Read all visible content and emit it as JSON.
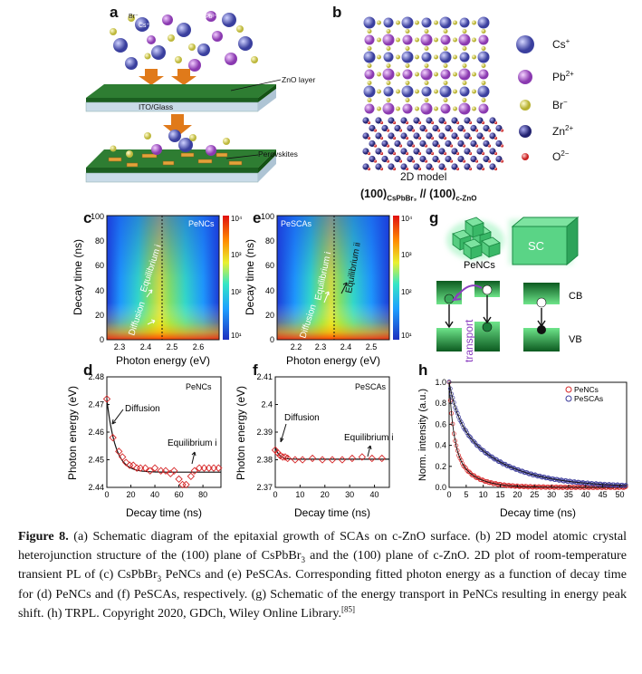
{
  "panels": {
    "a": {
      "label": "a",
      "ions": [
        "Br⁻",
        "Cs⁺",
        "Pb²⁺"
      ],
      "zno_layer": "ZnO layer",
      "substrate": "ITO/Glass",
      "perovskites": "Perovskites",
      "colors": {
        "zno": "#2e7d32",
        "substrate": "#c9dbe8",
        "arrow": "#e07a1a",
        "cs": "#4a4fb0",
        "pb": "#a44fc4",
        "br": "#e4e06a"
      }
    },
    "b": {
      "label": "b",
      "legend": [
        {
          "sym": "Cs",
          "sup": "+",
          "color": "#4f55c8"
        },
        {
          "sym": "Pb",
          "sup": "2+",
          "color": "#b45ad4"
        },
        {
          "sym": "Br",
          "sup": "−",
          "color": "#d9d35a"
        },
        {
          "sym": "Zn",
          "sup": "2+",
          "color": "#3a3a90"
        },
        {
          "sym": "O",
          "sup": "2−",
          "color": "#e04040"
        }
      ],
      "model_title": "2D model",
      "interface_left": "(100)",
      "interface_left_sub": "CsPbBr₃",
      "interface_sep": " // (100)",
      "interface_right_sub": "c-ZnO"
    },
    "c": {
      "label": "c",
      "tag": "PeNCs",
      "xlabel": "Photon energy (eV)",
      "ylabel": "Decay time (ns)",
      "xticks": [
        "2.3",
        "2.4",
        "2.5",
        "2.6"
      ],
      "yticks": [
        "0",
        "20",
        "40",
        "60",
        "80",
        "100"
      ],
      "annot_eq": "Equilibrium i",
      "annot_diff": "Diffusion",
      "cbar": [
        "10⁴",
        "10³",
        "10²",
        "10¹"
      ]
    },
    "e": {
      "label": "e",
      "tag": "PeSCAs",
      "xlabel": "Photon energy (eV)",
      "ylabel": "Decay time (ns)",
      "xticks": [
        "2.2",
        "2.3",
        "2.4",
        "2.5"
      ],
      "yticks": [
        "0",
        "20",
        "40",
        "60",
        "80",
        "100"
      ],
      "annot_eq": "Equilibrium i",
      "annot_eq2": "Equilibrium ii",
      "annot_diff": "Diffusion",
      "cbar": [
        "10⁴",
        "10³",
        "10²",
        "10¹"
      ]
    },
    "g": {
      "label": "g",
      "pencs": "PeNCs",
      "sc": "SC",
      "cb": "CB",
      "vb": "VB",
      "transport": "transport"
    },
    "d": {
      "label": "d",
      "tag": "PeNCs",
      "xlabel": "Decay time (ns)",
      "ylabel": "Photon energy (eV)",
      "xticks": [
        "0",
        "20",
        "40",
        "60",
        "80"
      ],
      "yticks": [
        "2.44",
        "2.45",
        "2.46",
        "2.47",
        "2.48"
      ],
      "annot_diff": "Diffusion",
      "annot_eq": "Equilibrium i"
    },
    "f": {
      "label": "f",
      "tag": "PeSCAs",
      "xlabel": "Decay time (ns)",
      "ylabel": "Photon energy (eV)",
      "xticks": [
        "0",
        "10",
        "20",
        "30",
        "40"
      ],
      "yticks": [
        "2.37",
        "2.38",
        "2.39",
        "2.4",
        "2.41"
      ],
      "annot_diff": "Diffusion",
      "annot_eq": "Equilibrium i"
    },
    "h": {
      "label": "h",
      "xlabel": "Decay time (ns)",
      "ylabel": "Norm. intensity (a.u.)",
      "xticks": [
        "0",
        "5",
        "10",
        "15",
        "20",
        "25",
        "30",
        "35",
        "40",
        "45",
        "50"
      ],
      "yticks": [
        "0.0",
        "0.2",
        "0.4",
        "0.6",
        "0.8",
        "1.0"
      ],
      "legend": [
        "PeNCs",
        "PeSCAs"
      ],
      "colors": [
        "#d62728",
        "#3a3a9a"
      ]
    }
  },
  "chart_data": [
    {
      "type": "scatter",
      "panel": "d",
      "xlim": [
        0,
        95
      ],
      "ylim": [
        2.44,
        2.48
      ],
      "series": [
        {
          "points": [
            [
              0,
              2.472
            ],
            [
              5,
              2.458
            ],
            [
              10,
              2.453
            ],
            [
              13,
              2.451
            ],
            [
              16,
              2.449
            ],
            [
              19,
              2.448
            ],
            [
              22,
              2.448
            ],
            [
              25,
              2.447
            ],
            [
              28,
              2.447
            ],
            [
              32,
              2.447
            ],
            [
              36,
              2.446
            ],
            [
              40,
              2.447
            ],
            [
              45,
              2.446
            ],
            [
              49,
              2.446
            ],
            [
              53,
              2.445
            ],
            [
              56,
              2.446
            ],
            [
              60,
              2.443
            ],
            [
              63,
              2.441
            ],
            [
              66,
              2.441
            ],
            [
              70,
              2.444
            ],
            [
              73,
              2.446
            ],
            [
              77,
              2.447
            ],
            [
              81,
              2.447
            ],
            [
              85,
              2.447
            ],
            [
              89,
              2.447
            ],
            [
              93,
              2.447
            ]
          ]
        }
      ],
      "fit": {
        "asymptote": 2.4455,
        "amplitude": 0.0265,
        "tau": 7
      }
    },
    {
      "type": "scatter",
      "panel": "f",
      "xlim": [
        0,
        46
      ],
      "ylim": [
        2.37,
        2.41
      ],
      "series": [
        {
          "points": [
            [
              0,
              2.3835
            ],
            [
              1,
              2.3825
            ],
            [
              2,
              2.3815
            ],
            [
              3,
              2.381
            ],
            [
              4,
              2.381
            ],
            [
              5,
              2.3805
            ],
            [
              8,
              2.38
            ],
            [
              11,
              2.38
            ],
            [
              15,
              2.3805
            ],
            [
              19,
              2.38
            ],
            [
              23,
              2.38
            ],
            [
              27,
              2.38
            ],
            [
              31,
              2.3805
            ],
            [
              35,
              2.381
            ],
            [
              39,
              2.3805
            ],
            [
              43,
              2.3805
            ]
          ]
        }
      ],
      "fit": {
        "asymptote": 2.3802,
        "amplitude": 0.0045,
        "tau": 1.5
      }
    },
    {
      "type": "line",
      "panel": "h",
      "xlim": [
        0,
        52
      ],
      "ylim": [
        0,
        1.0
      ],
      "series": [
        {
          "name": "PeNCs",
          "a1": 0.6,
          "t1": 1.3,
          "a2": 0.4,
          "t2": 5.5
        },
        {
          "name": "PeSCAs",
          "a1": 0.3,
          "t1": 2.5,
          "a2": 0.7,
          "t2": 14
        }
      ]
    }
  ],
  "caption": {
    "fig": "Figure 8.",
    "s1": " (a) Schematic diagram of the epitaxial growth of SCAs on c-ZnO surface. (b) 2D model atomic crystal heterojunction structure of the (100) plane of CsPbBr",
    "s1sub": "3",
    "s2": " and the (100) plane of c-ZnO. 2D plot of room-temperature transient PL of (c) CsPbBr",
    "s2sub": "3",
    "s3": " PeNCs and (e) PeSCAs. Corresponding fitted photon energy as a function of decay time for (d) PeNCs and (f) PeSCAs, respectively. (g) Schematic of the energy transport in PeNCs resulting in energy peak shift. (h) TRPL. Copyright 2020, GDCh, Wiley Online Library.",
    "ref": "[85]"
  }
}
